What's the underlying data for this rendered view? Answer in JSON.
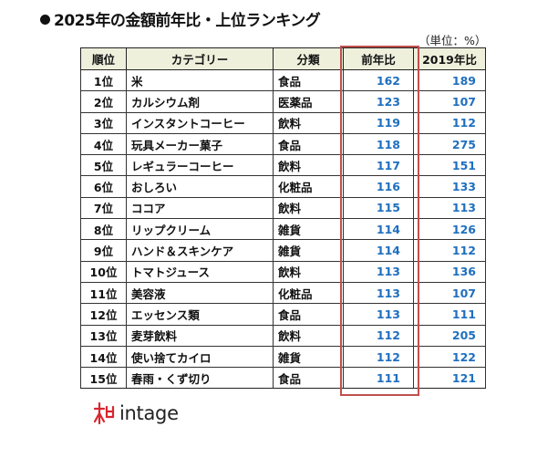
{
  "title": "2025年の金額前年比・上位ランキング",
  "unit_note": "（単位：%）",
  "table": {
    "headers": [
      "順位",
      "カテゴリー",
      "分類",
      "前年比",
      "2019年比"
    ],
    "rows": [
      {
        "rank": "1位",
        "category": "米",
        "type": "食品",
        "yoy": "162",
        "vs2019": "189"
      },
      {
        "rank": "2位",
        "category": "カルシウム剤",
        "type": "医薬品",
        "yoy": "123",
        "vs2019": "107"
      },
      {
        "rank": "3位",
        "category": "インスタントコーヒー",
        "type": "飲料",
        "yoy": "119",
        "vs2019": "112"
      },
      {
        "rank": "4位",
        "category": "玩具メーカー菓子",
        "type": "食品",
        "yoy": "118",
        "vs2019": "275"
      },
      {
        "rank": "5位",
        "category": "レギュラーコーヒー",
        "type": "飲料",
        "yoy": "117",
        "vs2019": "151"
      },
      {
        "rank": "6位",
        "category": "おしろい",
        "type": "化粧品",
        "yoy": "116",
        "vs2019": "133"
      },
      {
        "rank": "7位",
        "category": "ココア",
        "type": "飲料",
        "yoy": "115",
        "vs2019": "113"
      },
      {
        "rank": "8位",
        "category": "リップクリーム",
        "type": "雑貨",
        "yoy": "114",
        "vs2019": "126"
      },
      {
        "rank": "9位",
        "category": "ハンド＆スキンケア",
        "type": "雑貨",
        "yoy": "114",
        "vs2019": "112"
      },
      {
        "rank": "10位",
        "category": "トマトジュース",
        "type": "飲料",
        "yoy": "113",
        "vs2019": "136"
      },
      {
        "rank": "11位",
        "category": "美容液",
        "type": "化粧品",
        "yoy": "113",
        "vs2019": "107"
      },
      {
        "rank": "12位",
        "category": "エッセンス類",
        "type": "食品",
        "yoy": "113",
        "vs2019": "111"
      },
      {
        "rank": "13位",
        "category": "麦芽飲料",
        "type": "飲料",
        "yoy": "112",
        "vs2019": "205"
      },
      {
        "rank": "14位",
        "category": "使い捨てカイロ",
        "type": "雑貨",
        "yoy": "112",
        "vs2019": "122"
      },
      {
        "rank": "15位",
        "category": "春雨・くず切り",
        "type": "食品",
        "yoy": "111",
        "vs2019": "121"
      }
    ]
  },
  "logo": {
    "text": "intage",
    "icon": "intage-logo-icon"
  },
  "colors": {
    "header_bg": "#eef0dc",
    "number": "#1f6fbf",
    "highlight_border": "#c0504d"
  }
}
